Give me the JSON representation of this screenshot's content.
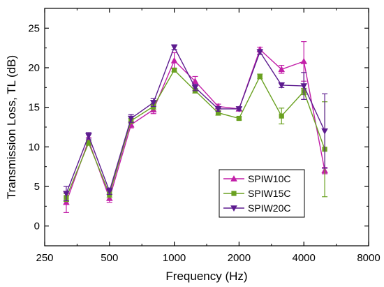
{
  "chart_data": {
    "type": "line",
    "xlabel": "Frequency (Hz)",
    "ylabel": "Transmission Loss, TL (dB)",
    "x_scale": "log2",
    "xlim": [
      250,
      8000
    ],
    "ylim": [
      -2.5,
      27.5
    ],
    "x_ticks": [
      250,
      500,
      1000,
      2000,
      4000,
      8000
    ],
    "x_tick_labels": [
      "250",
      "500",
      "1000",
      "2000",
      "4000",
      "8000"
    ],
    "y_ticks": [
      0,
      5,
      10,
      15,
      20,
      25
    ],
    "y_tick_labels": [
      "0",
      "5",
      "10",
      "15",
      "20",
      "25"
    ],
    "grid": false,
    "legend_position": "bottom-right",
    "x": [
      315,
      400,
      500,
      630,
      800,
      1000,
      1250,
      1600,
      2000,
      2500,
      3150,
      4000,
      5000
    ],
    "series": [
      {
        "name": "SPIW10C",
        "color": "#c21fa8",
        "marker": "triangle-up",
        "values": [
          3.0,
          10.8,
          3.5,
          12.8,
          14.7,
          20.9,
          18.3,
          15.1,
          14.8,
          22.3,
          19.8,
          20.8,
          7.0
        ],
        "errors": [
          1.3,
          0.4,
          0.5,
          0.4,
          0.5,
          1.0,
          0.6,
          0.3,
          0.2,
          0.3,
          0.5,
          2.5,
          0.4
        ]
      },
      {
        "name": "SPIW15C",
        "color": "#6aa121",
        "marker": "square",
        "values": [
          3.6,
          10.5,
          4.0,
          13.3,
          15.1,
          19.7,
          17.1,
          14.3,
          13.6,
          18.9,
          13.9,
          17.0,
          9.7
        ],
        "errors": [
          0.5,
          0.3,
          0.4,
          0.3,
          0.4,
          0.2,
          0.3,
          0.3,
          0.2,
          0.3,
          1.0,
          0.4,
          6.0
        ]
      },
      {
        "name": "SPIW20C",
        "color": "#5d1c8f",
        "marker": "triangle-down",
        "values": [
          4.1,
          11.4,
          4.4,
          13.6,
          15.6,
          22.6,
          17.5,
          14.8,
          14.8,
          22.0,
          17.8,
          17.7,
          12.0
        ],
        "errors": [
          0.9,
          0.4,
          0.4,
          0.5,
          0.5,
          0.3,
          0.4,
          0.3,
          0.2,
          0.3,
          0.3,
          1.7,
          4.7
        ]
      }
    ]
  }
}
